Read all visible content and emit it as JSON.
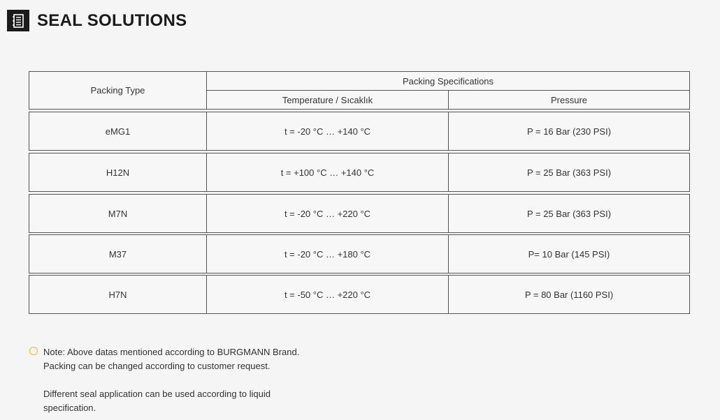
{
  "header": {
    "title": "SEAL SOLUTIONS",
    "icon": "notebook-icon"
  },
  "table": {
    "col_type": "Packing Type",
    "col_specs": "Packing Specifications",
    "col_temp": "Temperature / Sıcaklık",
    "col_pressure": "Pressure",
    "rows": [
      {
        "type": "eMG1",
        "temp": "t = -20 °C … +140 °C",
        "pressure": "P = 16 Bar (230 PSI)"
      },
      {
        "type": "H12N",
        "temp": "t = +100 °C  … +140 °C",
        "pressure": "P = 25 Bar (363 PSI)"
      },
      {
        "type": "M7N",
        "temp": "t = -20 °C … +220 °C",
        "pressure": "P = 25 Bar (363 PSI)"
      },
      {
        "type": "M37",
        "temp": "t = -20 °C … +180 °C",
        "pressure": "P= 10 Bar (145 PSI)"
      },
      {
        "type": "H7N",
        "temp": "t = -50 °C … +220 °C",
        "pressure": "P = 80 Bar (1160 PSI)"
      }
    ]
  },
  "note": {
    "line1": "Note: Above datas mentioned according to BURGMANN Brand.",
    "line2": "Packing can be changed according to customer request.",
    "line3": "Different seal application can be used according to liquid",
    "line4": "specification.",
    "bullet_color": "#f0b040"
  }
}
